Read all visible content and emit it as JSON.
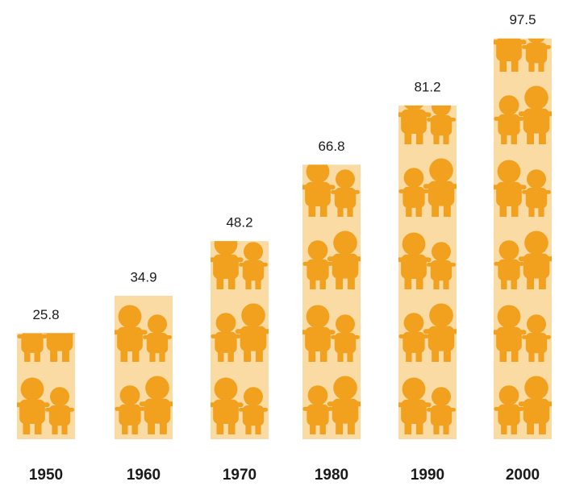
{
  "chart_data": {
    "type": "bar",
    "categories": [
      "1950",
      "1960",
      "1970",
      "1980",
      "1990",
      "2000"
    ],
    "values": [
      25.8,
      34.9,
      48.2,
      66.8,
      81.2,
      97.5
    ],
    "color": "#f9dba3",
    "icon_color": "#f2a11f"
  }
}
